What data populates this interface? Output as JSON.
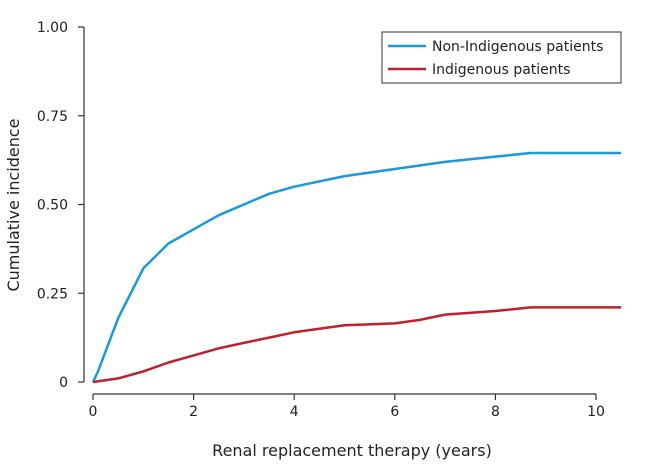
{
  "chart_data": {
    "type": "line",
    "title": "",
    "xlabel": "Renal replacement therapy (years)",
    "ylabel": "Cumulative incidence",
    "xlim": [
      0,
      10.5
    ],
    "ylim": [
      0,
      1
    ],
    "xticks": [
      0,
      2,
      4,
      6,
      8,
      10
    ],
    "xtick_labels": [
      "0",
      "2",
      "4",
      "6",
      "8",
      "10"
    ],
    "yticks": [
      0,
      0.25,
      0.5,
      0.75,
      1.0
    ],
    "ytick_labels": [
      "0",
      "0.25",
      "0.50",
      "0.75",
      "1.00"
    ],
    "grid": false,
    "legend_position": "top-right",
    "series": [
      {
        "name": "Non-Indigenous patients",
        "color": "#1a9ad9",
        "x": [
          0,
          0.1,
          0.5,
          1,
          1.5,
          2,
          2.5,
          3,
          3.5,
          4,
          5,
          6,
          7,
          8,
          8.7,
          10.5
        ],
        "y": [
          0,
          0.03,
          0.18,
          0.32,
          0.39,
          0.43,
          0.47,
          0.5,
          0.53,
          0.55,
          0.58,
          0.6,
          0.62,
          0.635,
          0.645,
          0.645
        ]
      },
      {
        "name": "Indigenous patients",
        "color": "#c0202a",
        "x": [
          0,
          0.5,
          1,
          1.5,
          2,
          2.5,
          3,
          3.5,
          4,
          5,
          6,
          6.5,
          7,
          8,
          8.7,
          10.5
        ],
        "y": [
          0,
          0.01,
          0.03,
          0.055,
          0.075,
          0.095,
          0.11,
          0.125,
          0.14,
          0.16,
          0.165,
          0.175,
          0.19,
          0.2,
          0.21,
          0.21
        ]
      }
    ]
  }
}
